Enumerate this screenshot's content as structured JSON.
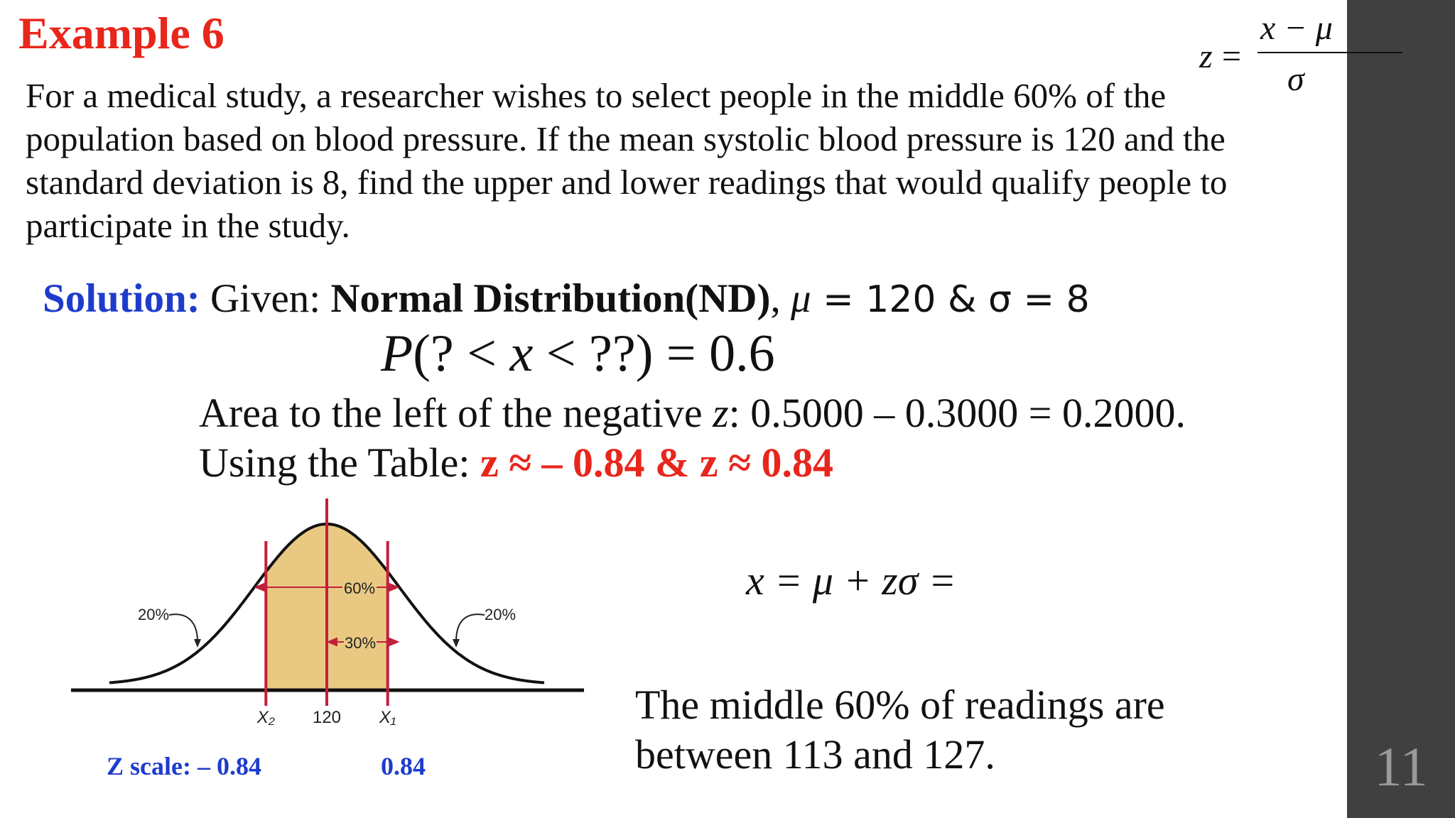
{
  "slide": {
    "title": "Example 6",
    "number": "11",
    "formula": {
      "z": "z",
      "eq": "=",
      "numerator": "x − μ",
      "denominator": "σ"
    },
    "problem_lines": [
      "For a medical study, a researcher wishes to select people in the middle 60% of the",
      "population based on blood pressure. If the mean systolic blood pressure is 120 and the",
      "standard deviation is 8, find the upper and lower readings that would qualify people to",
      "participate in the study."
    ],
    "solution": {
      "label": "Solution:",
      "given": " Given: ",
      "distribution": "Normal Distribution(ND)",
      "comma": ", ",
      "mu": "μ",
      "params": " = 120 &  σ = 8"
    },
    "probability": {
      "p": "P",
      "open": "(? < ",
      "x": "x",
      "close": " < ??) = 0.6"
    },
    "area_line": {
      "prefix": "Area to the left of the negative ",
      "z": "z",
      "suffix": ":  0.5000 – 0.3000 = 0.2000."
    },
    "table_line": {
      "prefix": "Using the Table: ",
      "result": "z ≈ – 0.84 & z ≈ 0.84"
    },
    "x_formula": "x = μ + zσ =",
    "conclusion_lines": [
      "The middle 60% of readings are",
      "between 113 and 127."
    ],
    "z_scale": {
      "left": "Z scale: – 0.84",
      "right": "0.84"
    }
  },
  "chart_data": {
    "type": "area",
    "distribution": "normal",
    "mean": 120,
    "z_bounds": [
      -0.84,
      0.84
    ],
    "x_labels": [
      "X₂",
      "120",
      "X₁"
    ],
    "annotations": {
      "left_tail": "20%",
      "right_tail": "20%",
      "middle": "60%",
      "half_middle": "30%"
    },
    "colors": {
      "shaded": "#e9c982",
      "bounds": "#c21f3a",
      "curve": "#111111"
    }
  }
}
